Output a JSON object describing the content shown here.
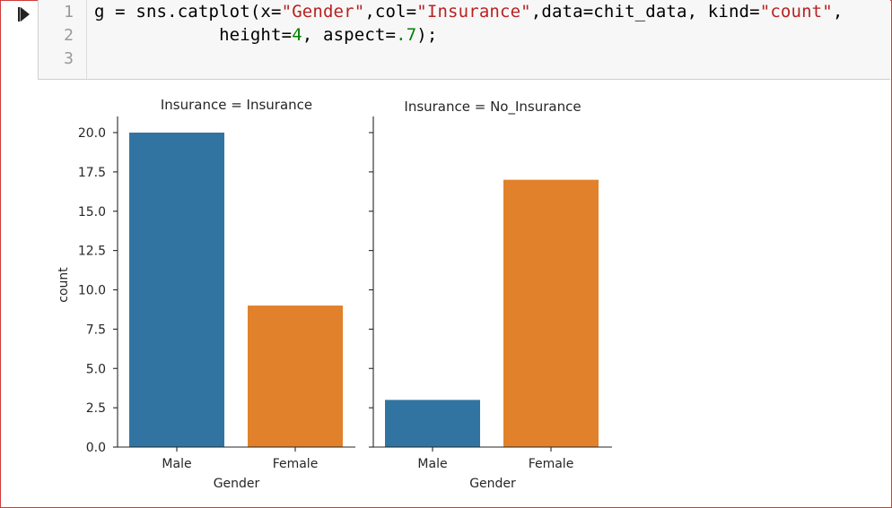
{
  "notebook": {
    "run_button_icon": "run-cell-icon",
    "line_numbers": [
      "1",
      "2",
      "3"
    ],
    "code": {
      "line1": {
        "prefix": "g = sns.catplot(x=",
        "s1": "\"Gender\"",
        "mid1": ",col=",
        "s2": "\"Insurance\"",
        "mid2": ",data=chit_data, kind=",
        "s3": "\"count\"",
        "end": ","
      },
      "line2": {
        "prefix": "            height=",
        "n1": "4",
        "mid": ", aspect=",
        "n2": ".7",
        "end": ");"
      }
    }
  },
  "chart_data": {
    "type": "bar",
    "ylabel": "count",
    "xlabel": "Gender",
    "categories": [
      "Male",
      "Female"
    ],
    "colors": [
      "#3274a1",
      "#e1812c"
    ],
    "ylim": [
      0,
      21
    ],
    "yticks": [
      "0.0",
      "2.5",
      "5.0",
      "7.5",
      "10.0",
      "12.5",
      "15.0",
      "17.5",
      "20.0"
    ],
    "grid": false,
    "panels": [
      {
        "title": "Insurance = Insurance",
        "values": [
          20,
          9
        ]
      },
      {
        "title": "Insurance = No_Insurance",
        "values": [
          3,
          17
        ]
      }
    ]
  }
}
